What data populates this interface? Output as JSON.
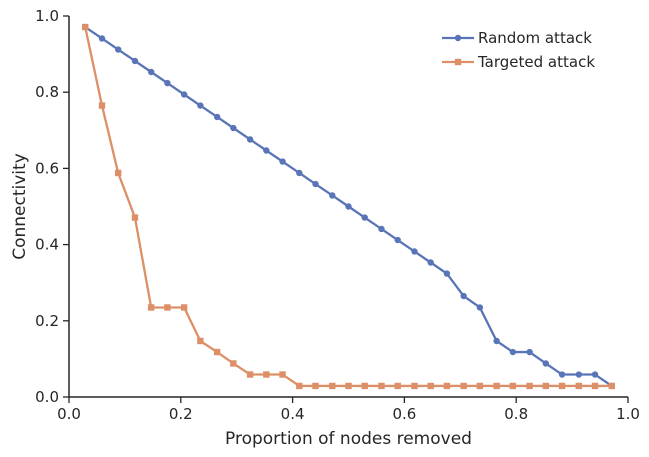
{
  "chart_data": {
    "type": "line",
    "xlabel": "Proportion of nodes removed",
    "ylabel": "Connectivity",
    "xlim": [
      0.0,
      1.0
    ],
    "ylim": [
      0.0,
      1.0
    ],
    "xticks": [
      "0.0",
      "0.2",
      "0.4",
      "0.6",
      "0.8",
      "1.0"
    ],
    "yticks": [
      "0.0",
      "0.2",
      "0.4",
      "0.6",
      "0.8",
      "1.0"
    ],
    "legend_position": "top-right",
    "grid": false,
    "x": [
      0.029,
      0.059,
      0.088,
      0.118,
      0.147,
      0.176,
      0.206,
      0.235,
      0.265,
      0.294,
      0.324,
      0.353,
      0.382,
      0.412,
      0.441,
      0.471,
      0.5,
      0.529,
      0.559,
      0.588,
      0.618,
      0.647,
      0.676,
      0.706,
      0.735,
      0.765,
      0.794,
      0.824,
      0.853,
      0.882,
      0.912,
      0.941,
      0.971
    ],
    "series": [
      {
        "name": "Random attack",
        "color": "#5975b7",
        "marker": "circle",
        "values": [
          0.971,
          0.941,
          0.912,
          0.882,
          0.853,
          0.824,
          0.794,
          0.765,
          0.735,
          0.706,
          0.676,
          0.647,
          0.618,
          0.588,
          0.559,
          0.529,
          0.5,
          0.471,
          0.441,
          0.412,
          0.382,
          0.353,
          0.324,
          0.265,
          0.235,
          0.147,
          0.118,
          0.118,
          0.088,
          0.059,
          0.059,
          0.059,
          0.029
        ]
      },
      {
        "name": "Targeted attack",
        "color": "#dd8f67",
        "marker": "square",
        "values": [
          0.971,
          0.765,
          0.588,
          0.471,
          0.235,
          0.235,
          0.235,
          0.147,
          0.118,
          0.088,
          0.059,
          0.059,
          0.059,
          0.029,
          0.029,
          0.029,
          0.029,
          0.029,
          0.029,
          0.029,
          0.029,
          0.029,
          0.029,
          0.029,
          0.029,
          0.029,
          0.029,
          0.029,
          0.029,
          0.029,
          0.029,
          0.029,
          0.029
        ]
      }
    ]
  }
}
